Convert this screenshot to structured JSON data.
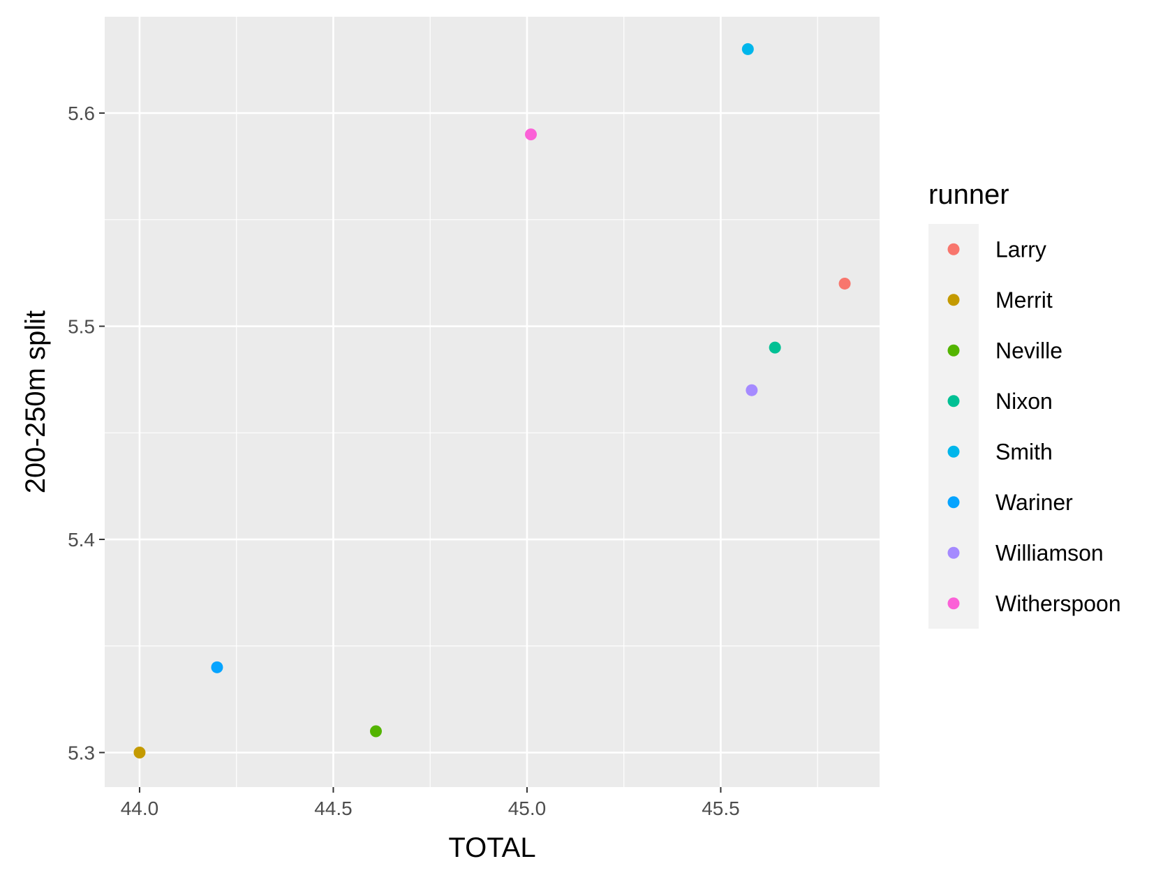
{
  "chart_data": {
    "type": "scatter",
    "xlabel": "TOTAL",
    "ylabel": "200-250m split",
    "xlim": [
      43.91,
      45.91
    ],
    "ylim": [
      5.2838,
      5.6452
    ],
    "x_ticks": [
      44.0,
      44.5,
      45.0,
      45.5
    ],
    "x_tick_labels": [
      "44.0",
      "44.5",
      "45.0",
      "45.5"
    ],
    "y_ticks": [
      5.3,
      5.4,
      5.5,
      5.6
    ],
    "y_tick_labels": [
      "5.3",
      "5.4",
      "5.5",
      "5.6"
    ],
    "grid": true,
    "legend": {
      "title": "runner",
      "position": "right"
    },
    "series": [
      {
        "name": "Larry",
        "color": "#F8766D",
        "x": [
          45.82
        ],
        "y": [
          5.52
        ]
      },
      {
        "name": "Merrit",
        "color": "#C49A00",
        "x": [
          44.0
        ],
        "y": [
          5.3
        ]
      },
      {
        "name": "Neville",
        "color": "#53B400",
        "x": [
          44.61
        ],
        "y": [
          5.31
        ]
      },
      {
        "name": "Nixon",
        "color": "#00C094",
        "x": [
          45.64
        ],
        "y": [
          5.49
        ]
      },
      {
        "name": "Smith",
        "color": "#00B6EB",
        "x": [
          45.57
        ],
        "y": [
          5.63
        ]
      },
      {
        "name": "Wariner",
        "color": "#06A4FF",
        "x": [
          44.2
        ],
        "y": [
          5.34
        ]
      },
      {
        "name": "Williamson",
        "color": "#A58AFF",
        "x": [
          45.58
        ],
        "y": [
          5.47
        ]
      },
      {
        "name": "Witherspoon",
        "color": "#FB61D7",
        "x": [
          45.01
        ],
        "y": [
          5.59
        ]
      }
    ]
  }
}
